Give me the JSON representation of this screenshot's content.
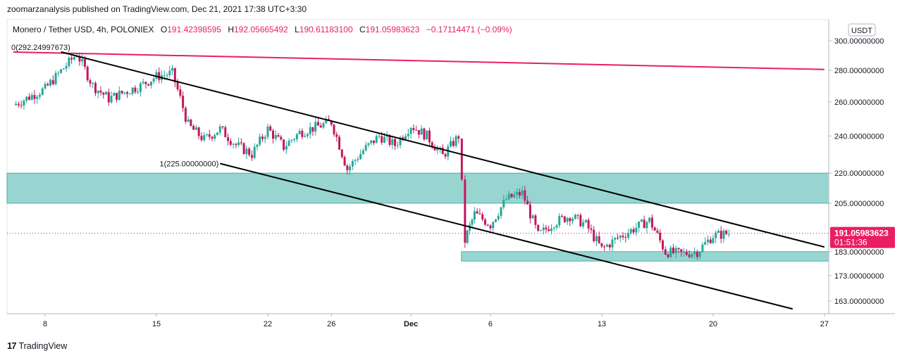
{
  "header": {
    "published": "zoomarzanalysis published on TradingView.com, Dec 21, 2021 17:38 UTC+3:30"
  },
  "legend": {
    "symbol": "Monero / Tether USD, 4h, POLONIEX",
    "o_label": "O",
    "o": "191.42398595",
    "h_label": "H",
    "h": "192.05665492",
    "l_label": "L",
    "l": "190.61183100",
    "c_label": "C",
    "c": "191.05983623",
    "change": "−0.17114471 (−0.09%)"
  },
  "currency_badge": "USDT",
  "price_tag": {
    "price": "191.05983623",
    "countdown": "01:51:36"
  },
  "footer": {
    "brand": "TradingView"
  },
  "colors": {
    "up": "#26a69a",
    "down": "#c2185b",
    "zone": "#80cbc4",
    "resistance": "#e91e63",
    "channel": "#000000"
  },
  "chart_data": {
    "type": "candlestick",
    "title": "Monero / Tether USD, 4h, POLONIEX",
    "xlabel": "",
    "ylabel": "",
    "x_ticks": [
      "8",
      "15",
      "22",
      "26",
      "Dec",
      "6",
      "13",
      "20",
      "27"
    ],
    "y_ticks": [
      "300.00000000",
      "280.00000000",
      "260.00000000",
      "240.00000000",
      "220.00000000",
      "205.00000000",
      "183.00000000",
      "173.00000000",
      "163.00000000"
    ],
    "y_scale": "log",
    "ylim": [
      158,
      304
    ],
    "last_price": 191.05983623,
    "series": [
      {
        "name": "price",
        "points": [
          [
            "Nov 6",
            258
          ],
          [
            "Nov 8",
            268
          ],
          [
            "Nov 10",
            291
          ],
          [
            "Nov 11",
            270
          ],
          [
            "Nov 12",
            262
          ],
          [
            "Nov 14",
            270
          ],
          [
            "Nov 15",
            276
          ],
          [
            "Nov 16",
            278
          ],
          [
            "Nov 17",
            246
          ],
          [
            "Nov 18",
            238
          ],
          [
            "Nov 19",
            244
          ],
          [
            "Nov 20",
            235
          ],
          [
            "Nov 21",
            230
          ],
          [
            "Nov 22",
            244
          ],
          [
            "Nov 23",
            234
          ],
          [
            "Nov 24",
            242
          ],
          [
            "Nov 25",
            245
          ],
          [
            "Nov 26",
            248
          ],
          [
            "Nov 27",
            222
          ],
          [
            "Nov 28",
            232
          ],
          [
            "Nov 29",
            240
          ],
          [
            "Nov 30",
            235
          ],
          [
            "Dec 1",
            246
          ],
          [
            "Dec 2",
            240
          ],
          [
            "Dec 3",
            229
          ],
          [
            "Dec 4",
            240
          ],
          [
            "Dec 4b",
            188
          ],
          [
            "Dec 5",
            200
          ],
          [
            "Dec 6",
            195
          ],
          [
            "Dec 7",
            207
          ],
          [
            "Dec 8",
            210
          ],
          [
            "Dec 9",
            190
          ],
          [
            "Dec 10",
            196
          ],
          [
            "Dec 11",
            199
          ],
          [
            "Dec 12",
            195
          ],
          [
            "Dec 13",
            184
          ],
          [
            "Dec 14",
            189
          ],
          [
            "Dec 16",
            197
          ],
          [
            "Dec 17",
            183
          ],
          [
            "Dec 18",
            182
          ],
          [
            "Dec 19",
            183
          ],
          [
            "Dec 20",
            190
          ],
          [
            "Dec 21",
            191.06
          ]
        ]
      }
    ],
    "annotations": [
      {
        "type": "label",
        "text": "0(292.24997673)"
      },
      {
        "type": "label",
        "text": "1(225.00000000)"
      },
      {
        "type": "zone",
        "from": 205,
        "to": 220
      },
      {
        "type": "zone",
        "from": 179,
        "to": 183
      },
      {
        "type": "trendline",
        "name": "resistance",
        "from": [
          "Nov 6",
          292.2
        ],
        "to": [
          "Dec 27",
          280.5
        ]
      },
      {
        "type": "channel",
        "upper_from": [
          "Nov 9",
          292.25
        ],
        "upper_to": [
          "Dec 27",
          185
        ],
        "lower_from": [
          "Nov 19",
          225
        ],
        "lower_to": [
          "Dec 25",
          160
        ]
      }
    ]
  }
}
